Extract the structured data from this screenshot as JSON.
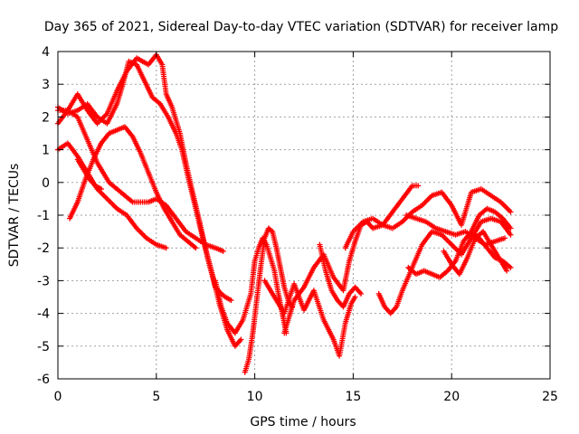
{
  "chart_data": {
    "type": "scatter",
    "title": "Day 365 of 2021, Sidereal Day-to-day VTEC variation (SDTVAR) for receiver lamp",
    "xlabel": "GPS time / hours",
    "ylabel": "SDTVAR / TECUs",
    "xlim": [
      0,
      25
    ],
    "ylim": [
      -6,
      4
    ],
    "x_ticks": [
      0,
      5,
      10,
      15,
      20,
      25
    ],
    "y_ticks": [
      -6,
      -5,
      -4,
      -3,
      -2,
      -1,
      0,
      1,
      2,
      3,
      4
    ],
    "grid": true,
    "legend": "none",
    "marker": "plus",
    "color": "#ff0000",
    "series": [
      {
        "x": [
          0,
          0.5,
          1,
          1.5,
          2,
          2.5,
          3,
          3.5,
          4,
          4.3,
          4.6,
          5,
          5.3,
          5.5,
          5.8,
          6.2,
          6.5,
          6.8,
          7.2,
          7.6,
          8,
          8.3,
          8.5,
          8.8
        ],
        "y": [
          1.8,
          2.2,
          2.7,
          2.2,
          1.8,
          2.1,
          2.8,
          3.4,
          3.8,
          3.7,
          3.6,
          3.9,
          3.6,
          2.7,
          2.3,
          1.5,
          0.6,
          -0.2,
          -1.2,
          -2.3,
          -3.2,
          -3.4,
          -3.5,
          -3.6
        ]
      },
      {
        "x": [
          0,
          0.5,
          1,
          1.5,
          2,
          2.5,
          3,
          3.3,
          3.6,
          4,
          4.4,
          4.8,
          5.2,
          5.6,
          6,
          6.3,
          6.6,
          7,
          7.4,
          7.8,
          8.2,
          8.6,
          9,
          9.3
        ],
        "y": [
          2.3,
          2.1,
          2.2,
          2.4,
          2.0,
          1.8,
          2.4,
          3.0,
          3.7,
          3.6,
          3.1,
          2.6,
          2.4,
          2.0,
          1.5,
          1.0,
          0.2,
          -0.8,
          -1.8,
          -2.7,
          -3.7,
          -4.5,
          -5.0,
          -4.8
        ]
      },
      {
        "x": [
          0,
          0.5,
          1,
          1.5,
          2,
          2.3,
          2.6,
          3,
          3.4,
          3.8,
          4.2,
          4.6,
          5,
          5.5,
          6,
          6.5,
          7,
          7.5,
          8,
          8.4
        ],
        "y": [
          2.2,
          2.2,
          2.0,
          1.3,
          0.6,
          0.3,
          0.0,
          -0.2,
          -0.4,
          -0.6,
          -0.6,
          -0.6,
          -0.5,
          -0.7,
          -1.1,
          -1.5,
          -1.7,
          -1.9,
          -2.0,
          -2.1
        ]
      },
      {
        "x": [
          0,
          0.5,
          1,
          1.5,
          2,
          2.5,
          3,
          3.5,
          4,
          4.5,
          5,
          5.5
        ],
        "y": [
          1.0,
          1.2,
          0.8,
          0.3,
          -0.2,
          -0.5,
          -0.8,
          -1.0,
          -1.4,
          -1.7,
          -1.9,
          -2.0
        ]
      },
      {
        "x": [
          0.6,
          1,
          1.4,
          1.8,
          2.2,
          2.6,
          3,
          3.4,
          3.8,
          4.2,
          4.6,
          5,
          5.4,
          5.8,
          6.2,
          6.6,
          7
        ],
        "y": [
          -1.1,
          -0.6,
          0.1,
          0.7,
          1.2,
          1.5,
          1.6,
          1.7,
          1.4,
          0.9,
          0.3,
          -0.3,
          -0.8,
          -1.2,
          -1.6,
          -1.8,
          -2.0
        ]
      },
      {
        "x": [
          1,
          1.3,
          1.6,
          1.9,
          2.2
        ],
        "y": [
          0.7,
          0.4,
          0.1,
          -0.1,
          -0.2
        ]
      },
      {
        "x": [
          8,
          8.3,
          8.6,
          9,
          9.4,
          9.8,
          10,
          10.2,
          10.4,
          10.6,
          10.8,
          11,
          11.2,
          11.4,
          11.6
        ],
        "y": [
          -3.0,
          -3.8,
          -4.3,
          -4.6,
          -4.2,
          -3.4,
          -2.4,
          -2.0,
          -1.7,
          -1.9,
          -2.3,
          -2.7,
          -3.4,
          -4.0,
          -4.6
        ]
      },
      {
        "x": [
          9.5,
          9.7,
          9.9,
          10.1,
          10.3,
          10.5,
          10.7,
          10.9,
          11.1,
          11.3,
          11.5,
          11.7,
          11.9
        ],
        "y": [
          -5.8,
          -5.4,
          -4.6,
          -3.6,
          -2.6,
          -1.7,
          -1.4,
          -1.5,
          -2.0,
          -2.6,
          -3.2,
          -3.6,
          -3.8
        ]
      },
      {
        "x": [
          10.5,
          11,
          11.5,
          12,
          12.5,
          13,
          13.5,
          14,
          14.3,
          14.6,
          14.9,
          15.1
        ],
        "y": [
          -3.0,
          -3.5,
          -4.0,
          -3.1,
          -3.9,
          -3.3,
          -4.2,
          -4.8,
          -5.3,
          -4.3,
          -3.7,
          -3.5
        ]
      },
      {
        "x": [
          11.5,
          12,
          12.5,
          13,
          13.5,
          14,
          14.5,
          14.8,
          15.1,
          15.4,
          15.7,
          16,
          16.5,
          17,
          17.5,
          18,
          18.3
        ],
        "y": [
          -4.6,
          -3.6,
          -3.2,
          -2.6,
          -2.2,
          -2.9,
          -3.3,
          -2.4,
          -1.8,
          -1.3,
          -1.2,
          -1.4,
          -1.3,
          -0.9,
          -0.5,
          -0.1,
          -0.1
        ]
      },
      {
        "x": [
          13.3,
          13.6,
          13.9,
          14.2,
          14.5,
          14.8,
          15.1,
          15.4
        ],
        "y": [
          -1.9,
          -2.7,
          -3.3,
          -3.6,
          -3.8,
          -3.4,
          -3.2,
          -3.4
        ]
      },
      {
        "x": [
          14.6,
          15,
          15.5,
          16,
          16.5,
          17,
          17.5,
          18,
          18.5,
          19,
          19.5,
          20,
          20.5,
          21,
          21.5,
          22,
          22.5,
          23
        ],
        "y": [
          -2.0,
          -1.5,
          -1.2,
          -1.1,
          -1.3,
          -1.4,
          -1.2,
          -0.9,
          -0.7,
          -0.4,
          -0.3,
          -0.7,
          -1.3,
          -0.3,
          -0.2,
          -0.4,
          -0.6,
          -0.9
        ]
      },
      {
        "x": [
          16.3,
          16.6,
          16.9,
          17.2,
          17.5,
          18,
          18.5,
          19,
          19.5,
          20,
          20.5,
          21,
          21.5,
          22,
          22.5,
          23
        ],
        "y": [
          -3.4,
          -3.8,
          -4.0,
          -3.8,
          -3.3,
          -2.6,
          -1.9,
          -1.5,
          -1.6,
          -1.9,
          -2.2,
          -1.7,
          -1.2,
          -1.1,
          -1.2,
          -1.6
        ]
      },
      {
        "x": [
          17.8,
          18.2,
          18.6,
          19,
          19.4,
          19.8,
          20.2,
          20.6,
          21,
          21.4,
          21.8,
          22.2,
          22.6,
          23
        ],
        "y": [
          -2.6,
          -2.8,
          -2.7,
          -2.8,
          -2.9,
          -2.7,
          -2.4,
          -1.8,
          -1.5,
          -1.7,
          -2.0,
          -2.3,
          -2.4,
          -2.6
        ]
      },
      {
        "x": [
          17.7,
          18.2,
          18.7,
          19.2,
          19.7,
          20.2,
          20.7,
          21.2,
          21.7,
          22.2,
          22.7
        ],
        "y": [
          -1.0,
          -1.1,
          -1.2,
          -1.4,
          -1.5,
          -1.6,
          -1.5,
          -1.7,
          -1.9,
          -1.8,
          -1.7
        ]
      },
      {
        "x": [
          19.6,
          20,
          20.4,
          20.8,
          21.2,
          21.6,
          22,
          22.4,
          22.8
        ],
        "y": [
          -2.1,
          -2.5,
          -2.8,
          -2.3,
          -1.7,
          -1.5,
          -1.9,
          -2.3,
          -2.7
        ]
      },
      {
        "x": [
          21,
          21.4,
          21.8,
          22.2,
          22.6,
          23
        ],
        "y": [
          -1.5,
          -1.0,
          -0.8,
          -0.9,
          -1.1,
          -1.4
        ]
      }
    ]
  }
}
